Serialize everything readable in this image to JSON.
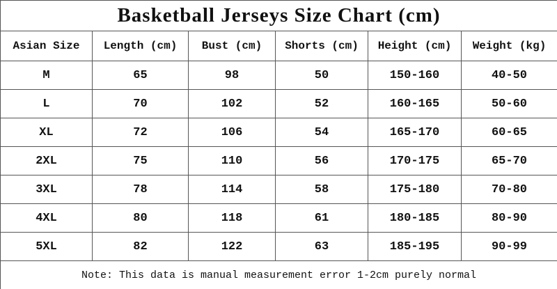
{
  "title": "Basketball Jerseys Size Chart (cm)",
  "table": {
    "header": [
      "Asian Size",
      "Length (cm)",
      "Bust (cm)",
      "Shorts (cm)",
      "Height (cm)",
      "Weight (kg)"
    ],
    "rows": [
      [
        "M",
        "65",
        "98",
        "50",
        "150-160",
        "40-50"
      ],
      [
        "L",
        "70",
        "102",
        "52",
        "160-165",
        "50-60"
      ],
      [
        "XL",
        "72",
        "106",
        "54",
        "165-170",
        "60-65"
      ],
      [
        "2XL",
        "75",
        "110",
        "56",
        "170-175",
        "65-70"
      ],
      [
        "3XL",
        "78",
        "114",
        "58",
        "175-180",
        "70-80"
      ],
      [
        "4XL",
        "80",
        "118",
        "61",
        "180-185",
        "80-90"
      ],
      [
        "5XL",
        "82",
        "122",
        "63",
        "185-195",
        "90-99"
      ]
    ]
  },
  "note": "Note: This data is manual measurement error 1-2cm purely normal"
}
